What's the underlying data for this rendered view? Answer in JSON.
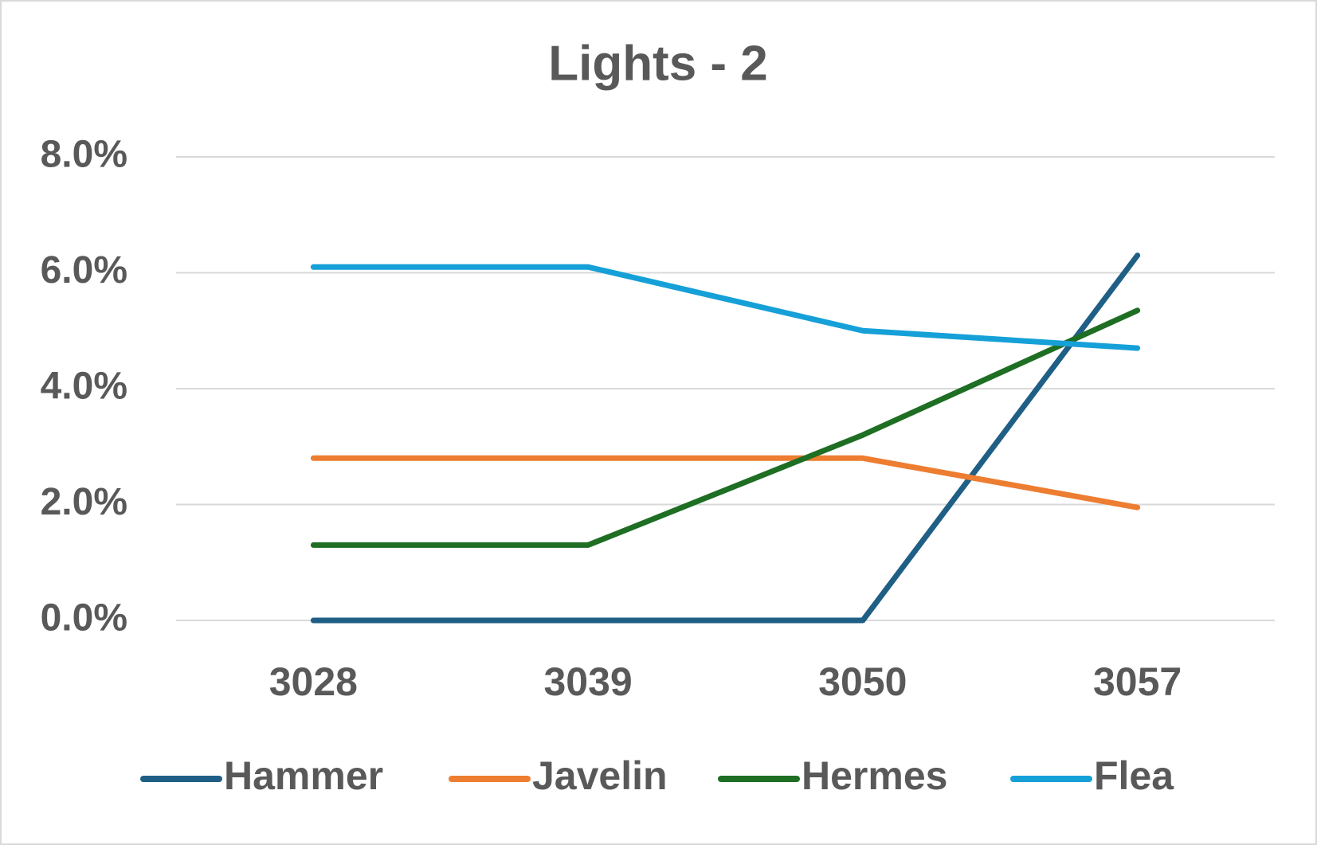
{
  "chart_data": {
    "type": "line",
    "title": "Lights - 2",
    "categories": [
      "3028",
      "3039",
      "3050",
      "3057"
    ],
    "series": [
      {
        "name": "Hammer",
        "color": "#1f5f85",
        "values": [
          0,
          0,
          0,
          6.3
        ]
      },
      {
        "name": "Javelin",
        "color": "#ed7d31",
        "values": [
          2.8,
          2.8,
          2.8,
          1.95
        ]
      },
      {
        "name": "Hermes",
        "color": "#1e6e23",
        "values": [
          1.3,
          1.3,
          3.2,
          5.35
        ]
      },
      {
        "name": "Flea",
        "color": "#16a0d8",
        "values": [
          6.1,
          6.1,
          5.0,
          4.7
        ]
      }
    ],
    "ylim": [
      0,
      8
    ],
    "yticks": [
      {
        "value": 0,
        "label": "0.0%"
      },
      {
        "value": 2,
        "label": "2.0%"
      },
      {
        "value": 4,
        "label": "4.0%"
      },
      {
        "value": 6,
        "label": "6.0%"
      },
      {
        "value": 8,
        "label": "8.0%"
      }
    ],
    "grid": true,
    "legend": "bottom"
  }
}
